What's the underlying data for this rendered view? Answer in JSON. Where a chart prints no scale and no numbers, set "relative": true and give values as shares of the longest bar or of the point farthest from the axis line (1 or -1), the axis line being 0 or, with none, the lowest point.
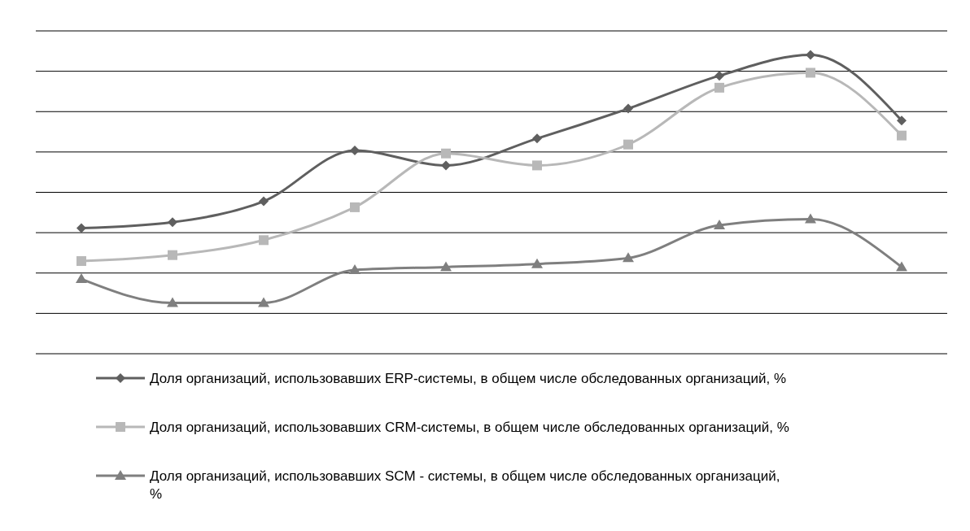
{
  "chart_data": {
    "type": "line",
    "relative": true,
    "grid": true,
    "legend": "bottom",
    "line_style": "solid",
    "categories": [
      null,
      null,
      null,
      null,
      null,
      null,
      null,
      null,
      null,
      null
    ],
    "series": [
      {
        "name": "Доля организаций, использовавших ERP-системы, в общем числе обследованных организаций,  %",
        "color": "#5f5f5f",
        "marker": "diamond",
        "values": [
          0.42,
          0.44,
          0.51,
          0.68,
          0.63,
          0.72,
          0.82,
          0.93,
          1,
          0.78
        ]
      },
      {
        "name": "Доля организаций, использовавших CRM-системы, в общем числе обследованных организаций,  %",
        "color": "#b8b8b8",
        "marker": "square",
        "values": [
          0.31,
          0.33,
          0.38,
          0.49,
          0.67,
          0.63,
          0.7,
          0.89,
          0.94,
          0.73
        ]
      },
      {
        "name": " Доля организаций, использовавших SCM - системы, в общем числе обследованных организаций,  %",
        "color": "#7f7f7f",
        "marker": "triangle",
        "values": [
          0.25,
          0.17,
          0.17,
          0.28,
          0.29,
          0.3,
          0.32,
          0.43,
          0.45,
          0.29
        ]
      }
    ]
  }
}
